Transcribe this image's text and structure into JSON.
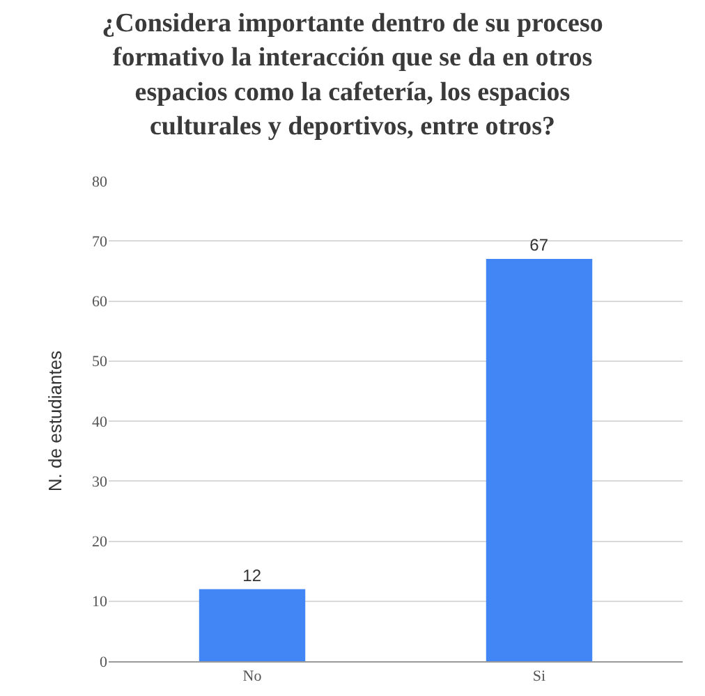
{
  "chart_data": {
    "type": "bar",
    "title": "¿Considera importante dentro de su proceso formativo la interacción que se da en otros espacios como la cafetería, los espacios culturales y deportivos, entre otros?",
    "ylabel": "N. de estudiantes",
    "categories": [
      "No",
      "Si"
    ],
    "values": [
      12,
      67
    ],
    "color": "#4285f4",
    "ylim": [
      0,
      80
    ],
    "yticks": [
      0,
      10,
      20,
      30,
      40,
      50,
      60,
      70,
      80
    ],
    "grid": "y",
    "data_labels": true
  }
}
